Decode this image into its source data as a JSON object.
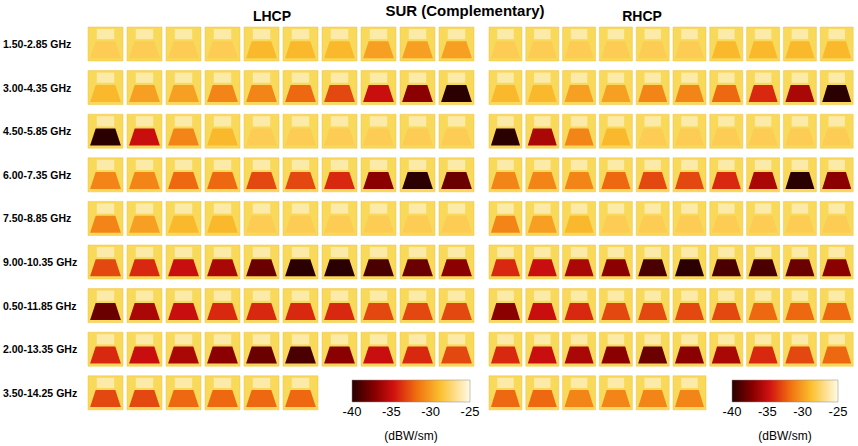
{
  "chart_data": {
    "type": "heatmap_grid",
    "title": "SUR (Complementary)",
    "row_labels": [
      "1.50-2.85 GHz",
      "3.00-4.35 GHz",
      "4.50-5.85 GHz",
      "6.00-7.35 GHz",
      "7.50-8.85 GHz",
      "9.00-10.35 GHz",
      "0.50-11.85 GHz",
      "2.00-13.35 GHz",
      "3.50-14.25 GHz"
    ],
    "panels": [
      {
        "label": "LHCP",
        "cells": [
          [
            -28,
            -28,
            -28,
            -28,
            -29,
            -29,
            -29,
            -30,
            -30,
            -30
          ],
          [
            -29,
            -30,
            -30,
            -31,
            -31,
            -32,
            -33,
            -35,
            -37,
            -40
          ],
          [
            -40,
            -35,
            -31,
            -29,
            -28,
            -28,
            -28,
            -28,
            -28,
            -28
          ],
          [
            -31,
            -31,
            -32,
            -32,
            -33,
            -33,
            -34,
            -37,
            -40,
            -38
          ],
          [
            -31,
            -30,
            -29,
            -29,
            -28,
            -28,
            -28,
            -28,
            -28,
            -28
          ],
          [
            -33,
            -34,
            -35,
            -36,
            -38,
            -40,
            -40,
            -39,
            -38,
            -37
          ],
          [
            -38,
            -36,
            -35,
            -34,
            -34,
            -34,
            -34,
            -33,
            -33,
            -33
          ],
          [
            -34,
            -35,
            -36,
            -37,
            -38,
            -39,
            -37,
            -35,
            -34,
            -33
          ],
          [
            -33,
            -33,
            -32,
            -32,
            -32,
            -32
          ]
        ],
        "colorbar": {
          "range": [
            -40,
            -25
          ],
          "ticks": [
            -40,
            -35,
            -30,
            -25
          ],
          "unit": "(dBW/sm)"
        }
      },
      {
        "label": "RHCP",
        "cells": [
          [
            -28,
            -28,
            -28,
            -28,
            -28,
            -28,
            -29,
            -29,
            -29,
            -29
          ],
          [
            -29,
            -29,
            -30,
            -30,
            -31,
            -31,
            -32,
            -34,
            -36,
            -40
          ],
          [
            -40,
            -36,
            -31,
            -29,
            -28,
            -28,
            -28,
            -28,
            -28,
            -28
          ],
          [
            -31,
            -31,
            -31,
            -32,
            -33,
            -33,
            -34,
            -36,
            -40,
            -37
          ],
          [
            -31,
            -30,
            -29,
            -28,
            -28,
            -28,
            -28,
            -28,
            -28,
            -28
          ],
          [
            -34,
            -35,
            -36,
            -37,
            -39,
            -40,
            -39,
            -39,
            -38,
            -37
          ],
          [
            -37,
            -35,
            -34,
            -33,
            -33,
            -33,
            -33,
            -32,
            -32,
            -32
          ],
          [
            -34,
            -35,
            -36,
            -37,
            -38,
            -37,
            -36,
            -34,
            -33,
            -32
          ],
          [
            -32,
            -32,
            -31,
            -31,
            -31,
            -31
          ]
        ],
        "colorbar": {
          "range": [
            -40,
            -25
          ],
          "ticks": [
            -40,
            -35,
            -30,
            -25
          ],
          "unit": "(dBW/sm)"
        }
      }
    ]
  }
}
